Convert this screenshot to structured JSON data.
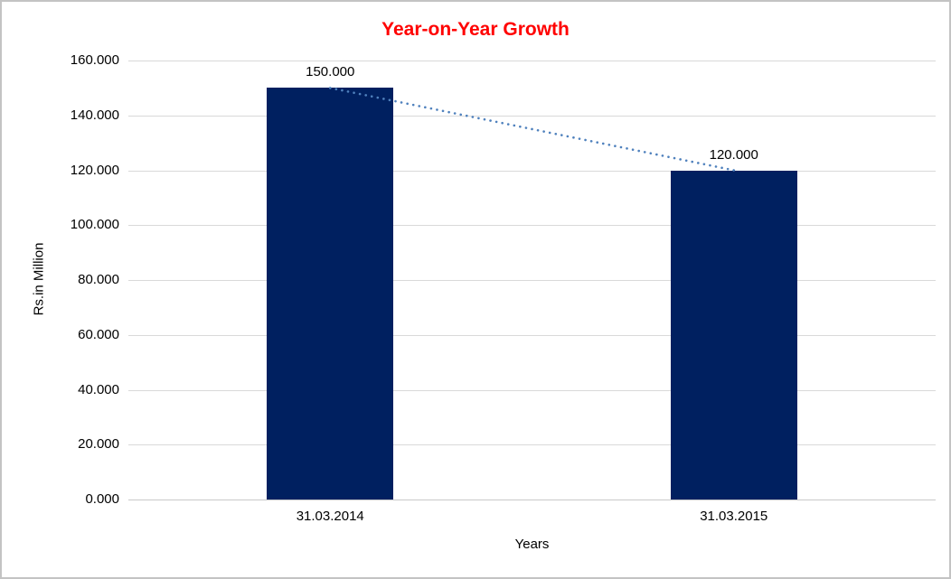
{
  "chart_data": {
    "type": "bar",
    "title": "Year-on-Year Growth",
    "xlabel": "Years",
    "ylabel": "Rs.in Million",
    "categories": [
      "31.03.2014",
      "31.03.2015"
    ],
    "values": [
      150.0,
      120.0
    ],
    "data_labels": [
      "150.000",
      "120.000"
    ],
    "y_ticks": [
      "0.000",
      "20.000",
      "40.000",
      "60.000",
      "80.000",
      "100.000",
      "120.000",
      "140.000",
      "160.000"
    ],
    "ylim": [
      0,
      160
    ],
    "grid": true,
    "legend": "none",
    "colors": {
      "title": "#ff0000",
      "bar": "#002060",
      "trendline": "#4f81bd",
      "grid": "#d9d9d9",
      "axis_line": "#c8c8c8",
      "frame_border": "#c3c3c3",
      "background": "#ffffff",
      "text": "#000000"
    },
    "trendline": {
      "style": "dotted",
      "connects": [
        "31.03.2014",
        "31.03.2015"
      ],
      "from_value": 150.0,
      "to_value": 120.0
    }
  }
}
